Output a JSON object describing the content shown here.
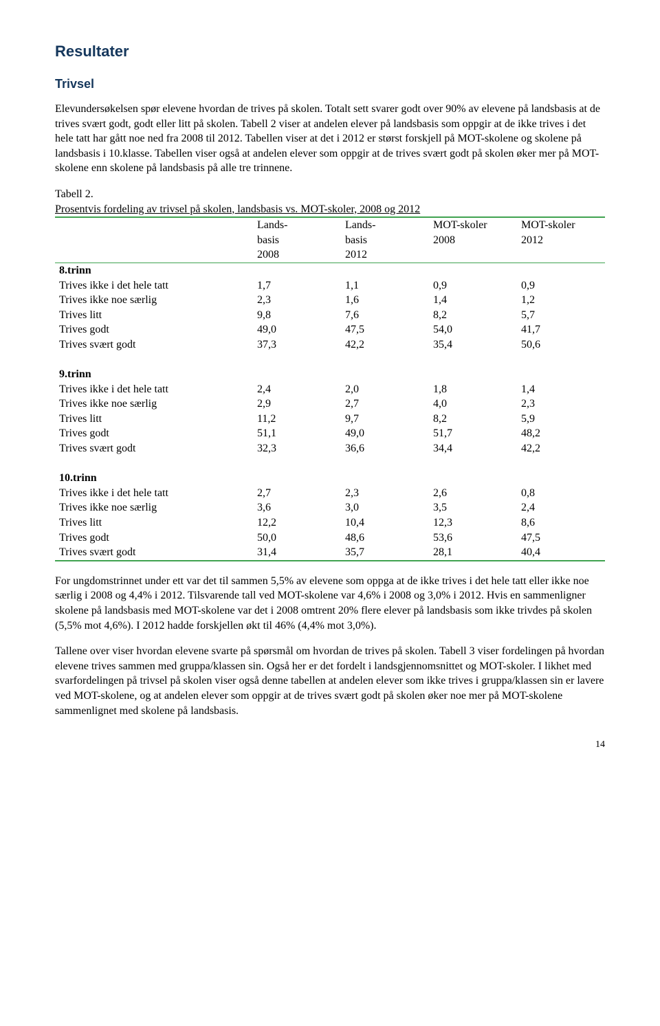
{
  "headings": {
    "resultater": "Resultater",
    "trivsel": "Trivsel"
  },
  "para1": "Elevundersøkelsen spør elevene hvordan de trives på skolen. Totalt sett svarer godt over 90% av elevene på landsbasis at de trives svært godt, godt eller litt på skolen. Tabell 2 viser at andelen elever på landsbasis som oppgir at de ikke trives i det hele tatt har gått noe ned fra 2008 til 2012. Tabellen viser at det i 2012 er størst forskjell på MOT-skolene og skolene på landsbasis i 10.klasse. Tabellen viser også at andelen elever som oppgir at de trives svært godt på skolen øker mer på MOT-skolene enn skolene på landsbasis på alle tre trinnene.",
  "table2": {
    "title": "Tabell 2.",
    "caption": "Prosentvis fordeling av trivsel på skolen, landsbasis vs. MOT-skoler, 2008 og 2012",
    "cols": {
      "c1a": "Lands-",
      "c1b": "basis",
      "c1c": "2008",
      "c2a": "Lands-",
      "c2b": "basis",
      "c2c": "2012",
      "c3a": "MOT-skoler",
      "c3b": "2008",
      "c4a": "MOT-skoler",
      "c4b": "2012"
    },
    "row_labels": {
      "r1": "Trives ikke i det hele tatt",
      "r2": "Trives ikke noe særlig",
      "r3": "Trives litt",
      "r4": "Trives godt",
      "r5": "Trives svært godt"
    },
    "sections": {
      "s8": {
        "title": "8.trinn",
        "rows": [
          [
            "1,7",
            "1,1",
            "0,9",
            "0,9"
          ],
          [
            "2,3",
            "1,6",
            "1,4",
            "1,2"
          ],
          [
            "9,8",
            "7,6",
            "8,2",
            "5,7"
          ],
          [
            "49,0",
            "47,5",
            "54,0",
            "41,7"
          ],
          [
            "37,3",
            "42,2",
            "35,4",
            "50,6"
          ]
        ]
      },
      "s9": {
        "title": "9.trinn",
        "rows": [
          [
            "2,4",
            "2,0",
            "1,8",
            "1,4"
          ],
          [
            "2,9",
            "2,7",
            "4,0",
            "2,3"
          ],
          [
            "11,2",
            "9,7",
            "8,2",
            "5,9"
          ],
          [
            "51,1",
            "49,0",
            "51,7",
            "48,2"
          ],
          [
            "32,3",
            "36,6",
            "34,4",
            "42,2"
          ]
        ]
      },
      "s10": {
        "title": "10.trinn",
        "rows": [
          [
            "2,7",
            "2,3",
            "2,6",
            "0,8"
          ],
          [
            "3,6",
            "3,0",
            "3,5",
            "2,4"
          ],
          [
            "12,2",
            "10,4",
            "12,3",
            "8,6"
          ],
          [
            "50,0",
            "48,6",
            "53,6",
            "47,5"
          ],
          [
            "31,4",
            "35,7",
            "28,1",
            "40,4"
          ]
        ]
      }
    }
  },
  "para2": "For ungdomstrinnet under ett var det til sammen 5,5% av elevene som oppga at de ikke trives i det hele tatt eller ikke noe særlig i 2008 og 4,4% i 2012. Tilsvarende tall ved MOT-skolene var 4,6% i 2008 og 3,0% i 2012. Hvis en sammenligner skolene på landsbasis med MOT-skolene var det i 2008 omtrent 20% flere elever på landsbasis som ikke trivdes på skolen (5,5% mot 4,6%). I 2012 hadde forskjellen økt til 46% (4,4% mot 3,0%).",
  "para3": "Tallene over viser hvordan elevene svarte på spørsmål om hvordan de trives på skolen. Tabell 3 viser fordelingen på hvordan elevene trives sammen med gruppa/klassen sin. Også her er det fordelt i landsgjennomsnittet og MOT-skoler. I likhet med svarfordelingen på trivsel på skolen viser også denne tabellen at andelen elever som ikke trives i gruppa/klassen sin er lavere ved MOT-skolene, og at andelen elever som oppgir at de trives svært godt på skolen øker noe mer på MOT-skolene sammenlignet med skolene på landsbasis.",
  "page_number": "14",
  "style": {
    "rule_color": "#3fa24f",
    "heading_color": "#15375c",
    "body_font": "Times New Roman",
    "heading_font": "Arial"
  }
}
